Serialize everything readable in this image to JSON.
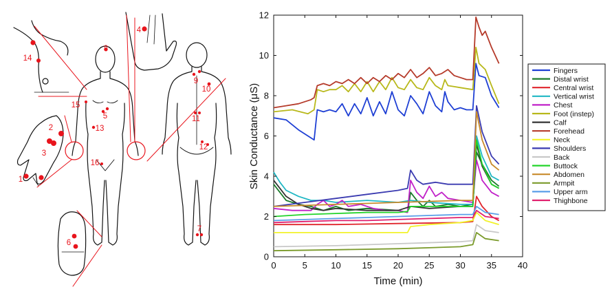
{
  "body_map": {
    "site_numbers": [
      "1",
      "2",
      "3",
      "4",
      "5",
      "6",
      "7",
      "8",
      "9",
      "10",
      "11",
      "12",
      "13",
      "14",
      "15",
      "16"
    ]
  },
  "chart_data": {
    "type": "line",
    "title": "",
    "xlabel": "Time (min)",
    "ylabel": "Skin Conductance (μS)",
    "xlim": [
      0,
      40
    ],
    "ylim": [
      0,
      12
    ],
    "xticks": [
      "0",
      "5",
      "10",
      "15",
      "20",
      "25",
      "30",
      "35",
      "40"
    ],
    "yticks": [
      "0",
      "2",
      "4",
      "6",
      "8",
      "10",
      "12"
    ],
    "grid": false,
    "legend_position": "right",
    "series": [
      {
        "name": "Fingers",
        "color": "#1e3fd4",
        "points": [
          [
            0,
            6.9
          ],
          [
            2,
            6.8
          ],
          [
            4,
            6.3
          ],
          [
            6.5,
            5.8
          ],
          [
            7,
            7.3
          ],
          [
            8,
            7.2
          ],
          [
            9,
            7.3
          ],
          [
            10,
            7.2
          ],
          [
            11,
            7.6
          ],
          [
            12,
            7.0
          ],
          [
            13,
            7.6
          ],
          [
            14,
            7.1
          ],
          [
            15,
            7.9
          ],
          [
            16,
            7.0
          ],
          [
            17,
            7.7
          ],
          [
            18,
            7.1
          ],
          [
            19,
            8.2
          ],
          [
            20,
            7.3
          ],
          [
            21,
            7.0
          ],
          [
            21.5,
            7.5
          ],
          [
            22,
            8.0
          ],
          [
            23,
            7.6
          ],
          [
            24,
            7.1
          ],
          [
            25,
            8.2
          ],
          [
            26,
            7.5
          ],
          [
            27,
            7.2
          ],
          [
            27.5,
            8.2
          ],
          [
            28,
            7.7
          ],
          [
            29,
            7.3
          ],
          [
            30,
            7.4
          ],
          [
            31,
            7.3
          ],
          [
            32,
            7.3
          ],
          [
            32.5,
            9.6
          ],
          [
            33,
            9.0
          ],
          [
            34,
            8.9
          ],
          [
            35,
            8.0
          ],
          [
            36.2,
            7.4
          ]
        ]
      },
      {
        "name": "Distal wrist",
        "color": "#1a7a2a",
        "points": [
          [
            0,
            3.6
          ],
          [
            2,
            2.8
          ],
          [
            4,
            2.6
          ],
          [
            6,
            2.5
          ],
          [
            8,
            2.3
          ],
          [
            10,
            2.5
          ],
          [
            12,
            2.3
          ],
          [
            15,
            2.4
          ],
          [
            20,
            2.3
          ],
          [
            21.5,
            2.2
          ],
          [
            22,
            3.2
          ],
          [
            23,
            2.8
          ],
          [
            24,
            2.5
          ],
          [
            25,
            2.8
          ],
          [
            26,
            2.5
          ],
          [
            28,
            2.6
          ],
          [
            30,
            2.5
          ],
          [
            32,
            2.6
          ],
          [
            32.6,
            5.2
          ],
          [
            33.5,
            4.6
          ],
          [
            35,
            3.8
          ],
          [
            36.2,
            3.5
          ]
        ]
      },
      {
        "name": "Central wrist",
        "color": "#e0242b",
        "points": [
          [
            0,
            1.6
          ],
          [
            10,
            1.6
          ],
          [
            20,
            1.65
          ],
          [
            30,
            1.7
          ],
          [
            32,
            1.75
          ],
          [
            32.6,
            3.0
          ],
          [
            33.5,
            2.5
          ],
          [
            35,
            2.0
          ],
          [
            36.2,
            1.8
          ]
        ]
      },
      {
        "name": "Vertical wrist",
        "color": "#1fb7c4",
        "points": [
          [
            0,
            4.2
          ],
          [
            1,
            3.7
          ],
          [
            2,
            3.3
          ],
          [
            4,
            3.0
          ],
          [
            6,
            2.8
          ],
          [
            8,
            2.8
          ],
          [
            10,
            2.7
          ],
          [
            15,
            2.8
          ],
          [
            20,
            2.7
          ],
          [
            22,
            2.8
          ],
          [
            25,
            2.7
          ],
          [
            30,
            2.6
          ],
          [
            32,
            2.6
          ],
          [
            32.6,
            6.0
          ],
          [
            33.5,
            5.0
          ],
          [
            35,
            4.0
          ],
          [
            36.2,
            3.8
          ]
        ]
      },
      {
        "name": "Chest",
        "color": "#c020c8",
        "points": [
          [
            0,
            2.4
          ],
          [
            3,
            2.3
          ],
          [
            6,
            2.3
          ],
          [
            7,
            2.6
          ],
          [
            8,
            2.8
          ],
          [
            9,
            2.5
          ],
          [
            10,
            2.6
          ],
          [
            11,
            2.8
          ],
          [
            12,
            2.5
          ],
          [
            14,
            2.6
          ],
          [
            16,
            2.4
          ],
          [
            18,
            2.3
          ],
          [
            20,
            2.3
          ],
          [
            21.5,
            2.2
          ],
          [
            22,
            3.8
          ],
          [
            23,
            3.2
          ],
          [
            24,
            2.9
          ],
          [
            25,
            3.5
          ],
          [
            26,
            3.0
          ],
          [
            27,
            3.2
          ],
          [
            28,
            2.9
          ],
          [
            30,
            2.8
          ],
          [
            32,
            2.7
          ],
          [
            32.6,
            4.8
          ],
          [
            33.5,
            3.8
          ],
          [
            35,
            3.2
          ],
          [
            36.2,
            3.0
          ]
        ]
      },
      {
        "name": "Foot (instep)",
        "color": "#b8b81a",
        "points": [
          [
            0,
            7.2
          ],
          [
            3,
            7.3
          ],
          [
            5.5,
            7.1
          ],
          [
            6.5,
            7.3
          ],
          [
            7,
            8.3
          ],
          [
            8,
            8.2
          ],
          [
            9,
            8.3
          ],
          [
            10,
            8.3
          ],
          [
            11,
            8.5
          ],
          [
            12,
            8.2
          ],
          [
            13,
            8.6
          ],
          [
            14,
            8.2
          ],
          [
            15,
            8.7
          ],
          [
            16,
            8.2
          ],
          [
            17,
            8.7
          ],
          [
            18,
            8.3
          ],
          [
            19,
            8.9
          ],
          [
            20,
            8.4
          ],
          [
            21,
            8.3
          ],
          [
            22,
            8.8
          ],
          [
            23,
            8.4
          ],
          [
            24,
            8.3
          ],
          [
            25,
            8.9
          ],
          [
            26,
            8.5
          ],
          [
            27,
            8.3
          ],
          [
            27.5,
            8.8
          ],
          [
            28,
            8.5
          ],
          [
            30,
            8.4
          ],
          [
            32,
            8.3
          ],
          [
            32.5,
            10.4
          ],
          [
            33,
            9.6
          ],
          [
            34,
            9.3
          ],
          [
            35,
            8.5
          ],
          [
            36.2,
            7.6
          ]
        ]
      },
      {
        "name": "Calf",
        "color": "#333333",
        "points": [
          [
            0,
            3.8
          ],
          [
            2,
            3.0
          ],
          [
            4,
            2.6
          ],
          [
            6,
            2.4
          ],
          [
            8,
            2.3
          ],
          [
            10,
            2.4
          ],
          [
            15,
            2.3
          ],
          [
            20,
            2.3
          ],
          [
            22,
            2.5
          ],
          [
            25,
            2.4
          ],
          [
            30,
            2.5
          ],
          [
            32,
            2.5
          ],
          [
            32.6,
            5.6
          ],
          [
            33.5,
            4.5
          ],
          [
            35,
            3.6
          ],
          [
            36.2,
            3.4
          ]
        ]
      },
      {
        "name": "Forehead",
        "color": "#b53a2a",
        "points": [
          [
            0,
            7.4
          ],
          [
            2,
            7.5
          ],
          [
            4,
            7.6
          ],
          [
            6,
            7.8
          ],
          [
            6.5,
            7.9
          ],
          [
            7,
            8.5
          ],
          [
            8,
            8.6
          ],
          [
            9,
            8.5
          ],
          [
            10,
            8.7
          ],
          [
            11,
            8.6
          ],
          [
            12,
            8.8
          ],
          [
            13,
            8.6
          ],
          [
            14,
            8.9
          ],
          [
            15,
            8.6
          ],
          [
            16,
            8.9
          ],
          [
            17,
            8.7
          ],
          [
            18,
            9.0
          ],
          [
            19,
            8.8
          ],
          [
            20,
            9.1
          ],
          [
            21,
            8.9
          ],
          [
            22,
            9.3
          ],
          [
            23,
            8.9
          ],
          [
            24,
            9.1
          ],
          [
            25,
            9.4
          ],
          [
            26,
            9.0
          ],
          [
            27,
            9.1
          ],
          [
            28,
            9.3
          ],
          [
            29,
            9.0
          ],
          [
            30,
            8.9
          ],
          [
            31,
            8.8
          ],
          [
            32,
            8.8
          ],
          [
            32.5,
            11.9
          ],
          [
            33,
            11.4
          ],
          [
            33.5,
            11.0
          ],
          [
            34,
            11.2
          ],
          [
            35,
            10.4
          ],
          [
            36.2,
            9.6
          ]
        ]
      },
      {
        "name": "Neck",
        "color": "#f2f22a",
        "points": [
          [
            0,
            1.2
          ],
          [
            10,
            1.2
          ],
          [
            20,
            1.2
          ],
          [
            21.5,
            1.2
          ],
          [
            22,
            1.5
          ],
          [
            25,
            1.6
          ],
          [
            30,
            1.7
          ],
          [
            32,
            1.8
          ],
          [
            32.6,
            2.2
          ],
          [
            34,
            1.8
          ],
          [
            36.2,
            1.6
          ]
        ]
      },
      {
        "name": "Shoulders",
        "color": "#3a3ab0",
        "points": [
          [
            0,
            2.5
          ],
          [
            5,
            2.7
          ],
          [
            10,
            2.9
          ],
          [
            15,
            3.1
          ],
          [
            20,
            3.3
          ],
          [
            21.5,
            3.4
          ],
          [
            22,
            4.3
          ],
          [
            23,
            3.8
          ],
          [
            24,
            3.6
          ],
          [
            26,
            3.7
          ],
          [
            28,
            3.6
          ],
          [
            30,
            3.6
          ],
          [
            32,
            3.6
          ],
          [
            32.6,
            7.5
          ],
          [
            33.5,
            6.2
          ],
          [
            35,
            5.0
          ],
          [
            36.2,
            4.6
          ]
        ]
      },
      {
        "name": "Back",
        "color": "#c8c8c8",
        "points": [
          [
            0,
            0.5
          ],
          [
            10,
            0.55
          ],
          [
            20,
            0.65
          ],
          [
            30,
            0.75
          ],
          [
            32,
            0.8
          ],
          [
            32.6,
            1.6
          ],
          [
            34,
            1.3
          ],
          [
            36.2,
            1.2
          ]
        ]
      },
      {
        "name": "Buttock",
        "color": "#22d42a",
        "points": [
          [
            0,
            2.0
          ],
          [
            5,
            2.1
          ],
          [
            10,
            2.15
          ],
          [
            15,
            2.2
          ],
          [
            20,
            2.2
          ],
          [
            21.5,
            2.25
          ],
          [
            22,
            2.5
          ],
          [
            25,
            2.5
          ],
          [
            30,
            2.5
          ],
          [
            32,
            2.5
          ],
          [
            32.6,
            5.8
          ],
          [
            33.5,
            4.6
          ],
          [
            35,
            3.6
          ],
          [
            36.2,
            3.4
          ]
        ]
      },
      {
        "name": "Abdomen",
        "color": "#c88a2a",
        "points": [
          [
            0,
            2.5
          ],
          [
            5,
            2.55
          ],
          [
            10,
            2.6
          ],
          [
            15,
            2.65
          ],
          [
            20,
            2.7
          ],
          [
            25,
            2.75
          ],
          [
            30,
            2.8
          ],
          [
            32,
            2.8
          ],
          [
            32.6,
            7.2
          ],
          [
            33.5,
            5.8
          ],
          [
            35,
            4.6
          ],
          [
            36.2,
            4.3
          ]
        ]
      },
      {
        "name": "Armpit",
        "color": "#7a9a2a",
        "points": [
          [
            0,
            0.3
          ],
          [
            10,
            0.35
          ],
          [
            20,
            0.4
          ],
          [
            30,
            0.5
          ],
          [
            32,
            0.6
          ],
          [
            32.6,
            1.2
          ],
          [
            34,
            0.9
          ],
          [
            36.2,
            0.8
          ]
        ]
      },
      {
        "name": "Upper arm",
        "color": "#5a9ee8",
        "points": [
          [
            0,
            1.8
          ],
          [
            5,
            1.85
          ],
          [
            10,
            1.9
          ],
          [
            15,
            1.95
          ],
          [
            20,
            2.0
          ],
          [
            25,
            2.05
          ],
          [
            30,
            2.1
          ],
          [
            32,
            2.1
          ],
          [
            32.6,
            2.5
          ],
          [
            34,
            2.2
          ],
          [
            36.2,
            2.1
          ]
        ]
      },
      {
        "name": "Thighbone",
        "color": "#e0206e",
        "points": [
          [
            0,
            1.7
          ],
          [
            5,
            1.75
          ],
          [
            10,
            1.8
          ],
          [
            15,
            1.8
          ],
          [
            20,
            1.85
          ],
          [
            25,
            1.9
          ],
          [
            30,
            1.95
          ],
          [
            32,
            1.95
          ],
          [
            32.6,
            2.3
          ],
          [
            34,
            2.0
          ],
          [
            36.2,
            1.9
          ]
        ]
      }
    ]
  }
}
